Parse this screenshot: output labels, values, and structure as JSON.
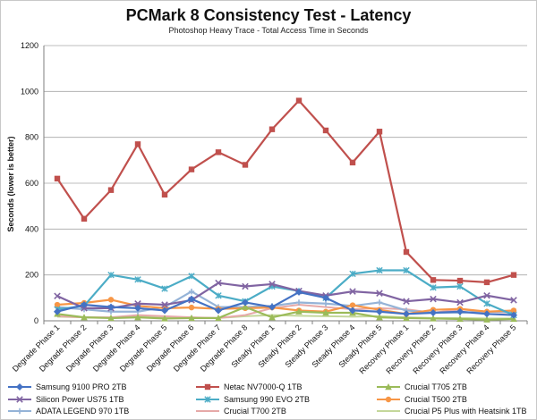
{
  "chart_data": {
    "type": "line",
    "title": "PCMark 8 Consistency Test - Latency",
    "subtitle": "Photoshop Heavy Trace - Total Access Time in Seconds",
    "ylabel": "Seconds (lower is better)",
    "xlabel": "",
    "ylim": [
      0,
      1200
    ],
    "yticks": [
      0,
      200,
      400,
      600,
      800,
      1000,
      1200
    ],
    "grid": "horizontal",
    "legend_position": "bottom",
    "categories": [
      "Degrade Phase 1",
      "Degrade Phase 2",
      "Degrade Phase 3",
      "Degrade Phase 4",
      "Degrade Phase 5",
      "Degrade Phase 6",
      "Degrade Phase 7",
      "Degrade Phase 8",
      "Steady Phase 1",
      "Steady Phase 2",
      "Steady Phase 3",
      "Steady Phase 4",
      "Steady Phase 5",
      "Recovery Phase 1",
      "Recovery Phase 2",
      "Recovery Phase 3",
      "Recovery Phase 4",
      "Recovery Phase 5"
    ],
    "series": [
      {
        "name": "Samsung 9100 PRO 2TB",
        "color": "#4472c4",
        "marker": "diamond",
        "values": [
          40,
          70,
          60,
          55,
          45,
          95,
          45,
          80,
          60,
          125,
          100,
          45,
          40,
          30,
          35,
          40,
          30,
          25
        ]
      },
      {
        "name": "Netac NV7000-Q 1TB",
        "color": "#c0504d",
        "marker": "square",
        "values": [
          620,
          445,
          570,
          770,
          550,
          660,
          735,
          680,
          835,
          960,
          830,
          690,
          825,
          300,
          178,
          175,
          168,
          200
        ]
      },
      {
        "name": "Crucial T705 2TB",
        "color": "#9bbb59",
        "marker": "triangle",
        "values": [
          30,
          15,
          12,
          15,
          10,
          12,
          12,
          60,
          15,
          40,
          35,
          35,
          15,
          12,
          10,
          8,
          5,
          8
        ]
      },
      {
        "name": "Silicon Power US75 1TB",
        "color": "#8064a2",
        "marker": "x",
        "values": [
          108,
          55,
          55,
          75,
          70,
          90,
          165,
          150,
          160,
          130,
          110,
          128,
          120,
          85,
          95,
          80,
          110,
          90
        ]
      },
      {
        "name": "Samsung 990 EVO 2TB",
        "color": "#4bacc6",
        "marker": "star",
        "values": [
          50,
          65,
          200,
          180,
          140,
          195,
          110,
          85,
          150,
          130,
          100,
          205,
          220,
          220,
          145,
          150,
          75,
          25
        ]
      },
      {
        "name": "Crucial T500 2TB",
        "color": "#f79646",
        "marker": "circle",
        "values": [
          70,
          78,
          92,
          65,
          55,
          58,
          52,
          55,
          58,
          45,
          40,
          68,
          48,
          30,
          48,
          52,
          40,
          45
        ]
      },
      {
        "name": "ADATA LEGEND 970 1TB",
        "color": "#95b3d7",
        "marker": "plus",
        "values": [
          60,
          50,
          40,
          40,
          60,
          128,
          60,
          60,
          65,
          80,
          75,
          65,
          80,
          45,
          35,
          35,
          40,
          40
        ]
      },
      {
        "name": "Crucial T700 2TB",
        "color": "#e6a9a8",
        "marker": "line",
        "values": [
          20,
          15,
          15,
          25,
          20,
          15,
          12,
          25,
          55,
          70,
          60,
          50,
          55,
          50,
          35,
          50,
          40,
          35
        ]
      },
      {
        "name": "Crucial P5 Plus with Heatsink 1TB",
        "color": "#c4d79b",
        "marker": "line",
        "values": [
          18,
          15,
          14,
          20,
          15,
          14,
          12,
          20,
          25,
          22,
          20,
          18,
          20,
          15,
          12,
          12,
          10,
          10
        ]
      }
    ]
  }
}
